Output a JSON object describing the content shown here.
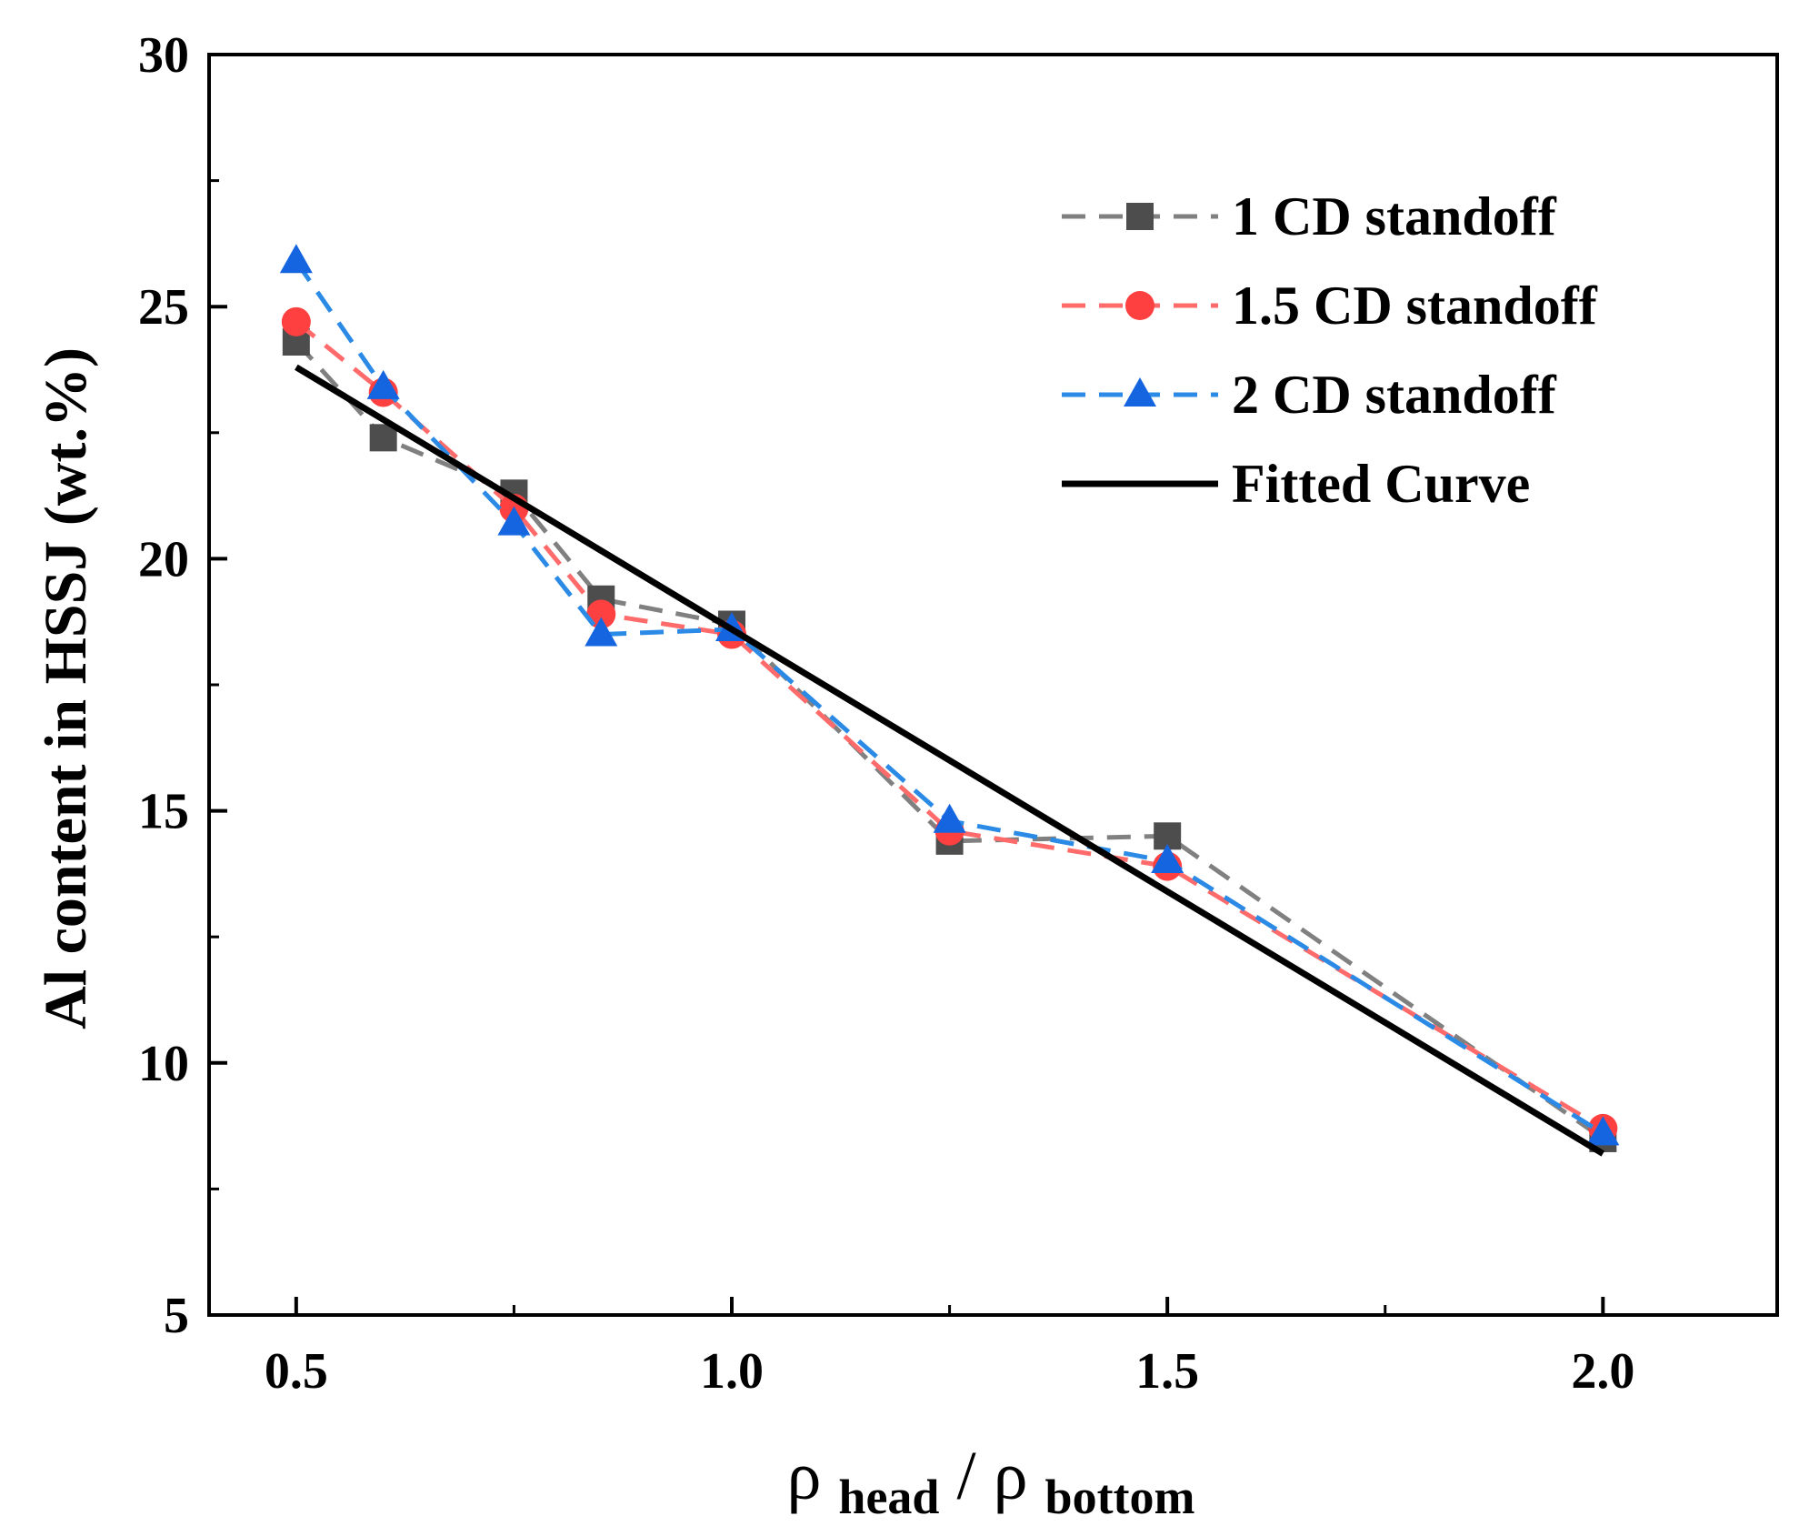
{
  "chart_data": {
    "type": "line",
    "title": "",
    "xlabel": {
      "symbol_numerator": "ρ",
      "sub_numerator": "head",
      "separator": "/",
      "symbol_denominator": "ρ",
      "sub_denominator": "bottom"
    },
    "ylabel": "Al content in HSSJ (wt.%)",
    "xlim": [
      0.4,
      2.2
    ],
    "ylim": [
      5,
      30
    ],
    "xticks": [
      0.5,
      1.0,
      1.5,
      2.0
    ],
    "xtick_labels": [
      "0.5",
      "1.0",
      "1.5",
      "2.0"
    ],
    "xminor_ticks": [
      0.75,
      1.25,
      1.75
    ],
    "yticks": [
      5,
      10,
      15,
      20,
      25,
      30
    ],
    "ytick_labels": [
      "5",
      "10",
      "15",
      "20",
      "25",
      "30"
    ],
    "yminor_ticks": [
      7.5,
      12.5,
      17.5,
      22.5,
      27.5
    ],
    "grid": false,
    "legend_position": "top-right",
    "series": [
      {
        "name": "1 CD standoff",
        "marker": "square",
        "color": "#4d4d4d",
        "line_color": "#808080",
        "line_style": "dashed",
        "x": [
          0.5,
          0.6,
          0.75,
          0.85,
          1.0,
          1.25,
          1.5,
          2.0
        ],
        "y": [
          24.3,
          22.4,
          21.3,
          19.2,
          18.7,
          14.4,
          14.5,
          8.5
        ]
      },
      {
        "name": "1.5 CD standoff",
        "marker": "circle",
        "color": "#ff4040",
        "line_color": "#ff6b6b",
        "line_style": "dashed",
        "x": [
          0.5,
          0.6,
          0.75,
          0.85,
          1.0,
          1.25,
          1.5,
          2.0
        ],
        "y": [
          24.7,
          23.3,
          21.0,
          18.9,
          18.5,
          14.6,
          13.9,
          8.7
        ]
      },
      {
        "name": "2 CD standoff",
        "marker": "triangle",
        "color": "#1565e0",
        "line_color": "#2b8ae6",
        "line_style": "dashed",
        "x": [
          0.5,
          0.6,
          0.75,
          0.85,
          1.0,
          1.25,
          1.5,
          2.0
        ],
        "y": [
          25.9,
          23.4,
          20.7,
          18.5,
          18.6,
          14.8,
          14.0,
          8.6
        ]
      },
      {
        "name": "Fitted Curve",
        "marker": "none",
        "color": "#000000",
        "line_color": "#000000",
        "line_style": "solid",
        "x": [
          0.5,
          2.0
        ],
        "y": [
          23.8,
          8.2
        ]
      }
    ]
  }
}
